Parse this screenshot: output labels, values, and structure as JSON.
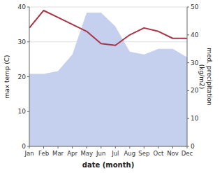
{
  "chart_data": {
    "type": "line",
    "xlabel": "date (month)",
    "ylabel": "max temp (C)",
    "y2label": "med. precipitation\n(kg/m2)",
    "categories": [
      "Jan",
      "Feb",
      "Mar",
      "Apr",
      "May",
      "Jun",
      "Jul",
      "Aug",
      "Sep",
      "Oct",
      "Nov",
      "Dec"
    ],
    "series": [
      {
        "type": "area",
        "axis": "y2",
        "color": "#c5d0ee",
        "values": [
          26,
          26,
          27,
          33,
          48,
          48,
          43,
          34,
          33,
          35,
          35,
          32
        ]
      },
      {
        "type": "line",
        "color": "#aa3344",
        "values": [
          34,
          39,
          37,
          35,
          33,
          29.5,
          29,
          32,
          34,
          33,
          31,
          31
        ]
      }
    ],
    "ylim": [
      0,
      40
    ],
    "yticks": [
      0,
      10,
      20,
      30,
      40
    ],
    "y2lim": [
      0,
      50
    ],
    "y2ticks": [
      0,
      10,
      20,
      30,
      40,
      50
    ],
    "grid": true
  }
}
